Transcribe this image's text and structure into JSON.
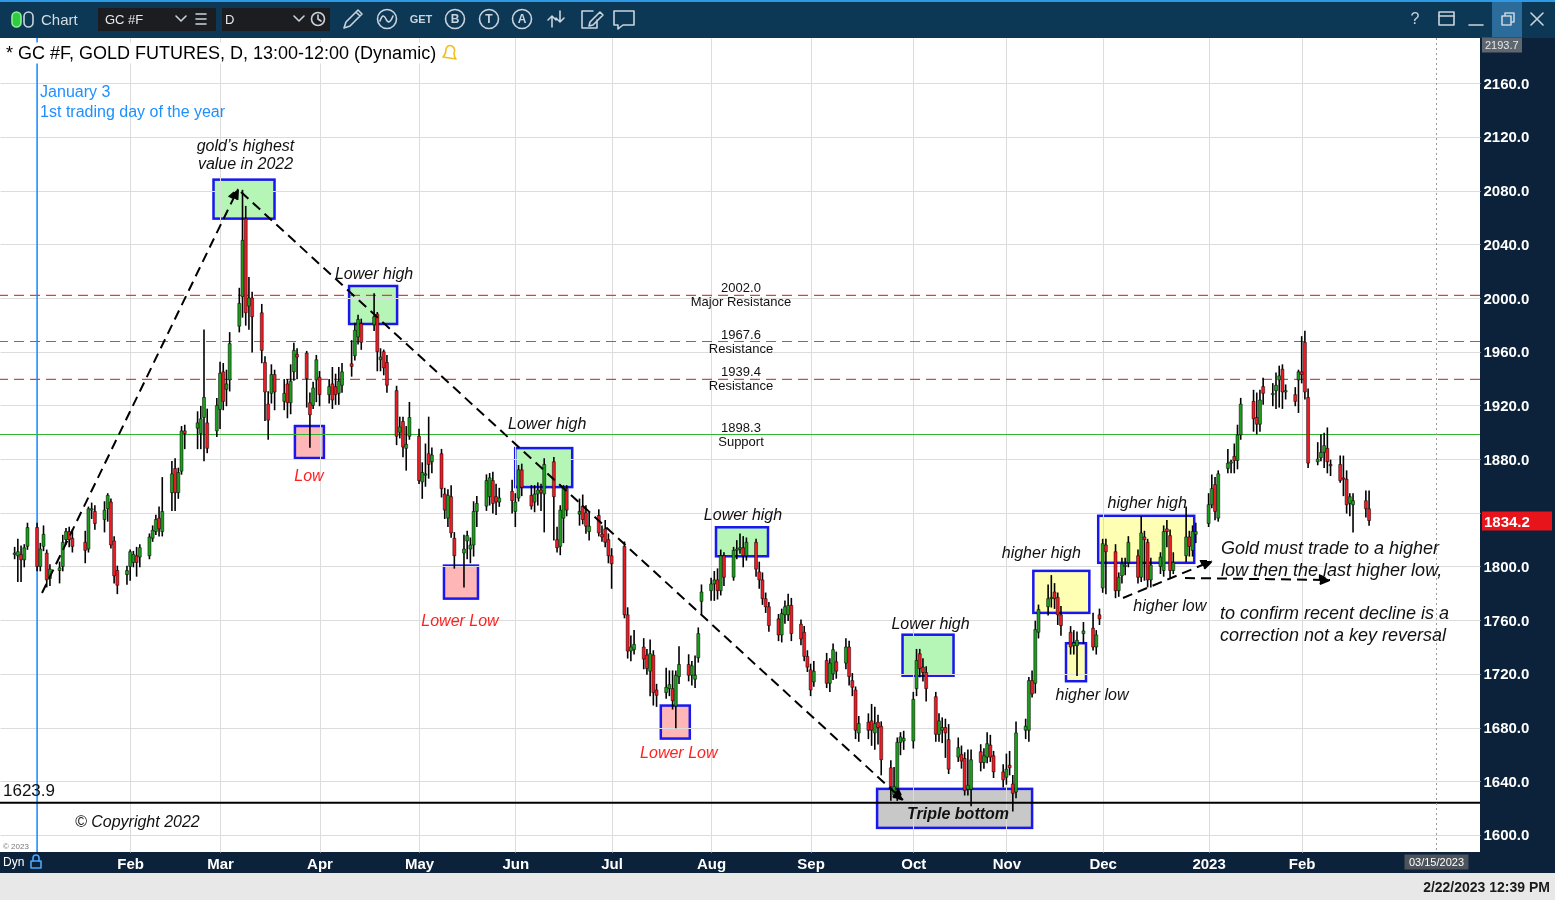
{
  "chart_data": {
    "type": "candlestick",
    "title": "* GC #F, GOLD FUTURES, D, 13:00-12:00 (Dynamic)",
    "x": [
      "2021-12-27",
      "2021-12-28",
      "2021-12-29",
      "2021-12-30",
      "2021-12-31",
      "2022-01-03",
      "2022-01-04",
      "2022-01-05",
      "2022-01-06",
      "2022-01-07",
      "2022-01-10",
      "2022-01-11",
      "2022-01-12",
      "2022-01-13",
      "2022-01-14",
      "2022-01-18",
      "2022-01-19",
      "2022-01-20",
      "2022-01-21",
      "2022-01-24",
      "2022-01-25",
      "2022-01-26",
      "2022-01-27",
      "2022-01-28",
      "2022-01-31",
      "2022-02-01",
      "2022-02-02",
      "2022-02-03",
      "2022-02-04",
      "2022-02-07",
      "2022-02-08",
      "2022-02-09",
      "2022-02-10",
      "2022-02-11",
      "2022-02-14",
      "2022-02-15",
      "2022-02-16",
      "2022-02-17",
      "2022-02-18",
      "2022-02-22",
      "2022-02-23",
      "2022-02-24",
      "2022-02-25",
      "2022-02-28",
      "2022-03-01",
      "2022-03-02",
      "2022-03-03",
      "2022-03-04",
      "2022-03-07",
      "2022-03-08",
      "2022-03-09",
      "2022-03-10",
      "2022-03-11",
      "2022-03-14",
      "2022-03-15",
      "2022-03-16",
      "2022-03-17",
      "2022-03-18",
      "2022-03-21",
      "2022-03-22",
      "2022-03-23",
      "2022-03-24",
      "2022-03-25",
      "2022-03-28",
      "2022-03-29",
      "2022-03-30",
      "2022-03-31",
      "2022-04-01",
      "2022-04-04",
      "2022-04-05",
      "2022-04-06",
      "2022-04-07",
      "2022-04-08",
      "2022-04-11",
      "2022-04-12",
      "2022-04-13",
      "2022-04-14",
      "2022-04-18",
      "2022-04-19",
      "2022-04-20",
      "2022-04-21",
      "2022-04-22",
      "2022-04-25",
      "2022-04-26",
      "2022-04-27",
      "2022-04-28",
      "2022-04-29",
      "2022-05-02",
      "2022-05-03",
      "2022-05-04",
      "2022-05-05",
      "2022-05-06",
      "2022-05-09",
      "2022-05-10",
      "2022-05-11",
      "2022-05-12",
      "2022-05-13",
      "2022-05-16",
      "2022-05-17",
      "2022-05-18",
      "2022-05-19",
      "2022-05-20",
      "2022-05-23",
      "2022-05-24",
      "2022-05-25",
      "2022-05-26",
      "2022-05-27",
      "2022-05-31",
      "2022-06-01",
      "2022-06-02",
      "2022-06-03",
      "2022-06-06",
      "2022-06-07",
      "2022-06-08",
      "2022-06-09",
      "2022-06-10",
      "2022-06-13",
      "2022-06-14",
      "2022-06-15",
      "2022-06-16",
      "2022-06-17",
      "2022-06-21",
      "2022-06-22",
      "2022-06-23",
      "2022-06-24",
      "2022-06-27",
      "2022-06-28",
      "2022-06-29",
      "2022-06-30",
      "2022-07-01",
      "2022-07-05",
      "2022-07-06",
      "2022-07-07",
      "2022-07-08",
      "2022-07-11",
      "2022-07-12",
      "2022-07-13",
      "2022-07-14",
      "2022-07-15",
      "2022-07-18",
      "2022-07-19",
      "2022-07-20",
      "2022-07-21",
      "2022-07-22",
      "2022-07-25",
      "2022-07-26",
      "2022-07-27",
      "2022-07-28",
      "2022-07-29",
      "2022-08-01",
      "2022-08-02",
      "2022-08-03",
      "2022-08-04",
      "2022-08-05",
      "2022-08-08",
      "2022-08-09",
      "2022-08-10",
      "2022-08-11",
      "2022-08-12",
      "2022-08-15",
      "2022-08-16",
      "2022-08-17",
      "2022-08-18",
      "2022-08-19",
      "2022-08-22",
      "2022-08-23",
      "2022-08-24",
      "2022-08-25",
      "2022-08-26",
      "2022-08-29",
      "2022-08-30",
      "2022-08-31",
      "2022-09-01",
      "2022-09-02",
      "2022-09-06",
      "2022-09-07",
      "2022-09-08",
      "2022-09-09",
      "2022-09-12",
      "2022-09-13",
      "2022-09-14",
      "2022-09-15",
      "2022-09-16",
      "2022-09-19",
      "2022-09-20",
      "2022-09-21",
      "2022-09-22",
      "2022-09-23",
      "2022-09-26",
      "2022-09-27",
      "2022-09-28",
      "2022-09-29",
      "2022-09-30",
      "2022-10-03",
      "2022-10-04",
      "2022-10-05",
      "2022-10-06",
      "2022-10-07",
      "2022-10-10",
      "2022-10-11",
      "2022-10-12",
      "2022-10-13",
      "2022-10-14",
      "2022-10-17",
      "2022-10-18",
      "2022-10-19",
      "2022-10-20",
      "2022-10-21",
      "2022-10-24",
      "2022-10-25",
      "2022-10-26",
      "2022-10-27",
      "2022-10-28",
      "2022-10-31",
      "2022-11-01",
      "2022-11-02",
      "2022-11-03",
      "2022-11-04",
      "2022-11-07",
      "2022-11-08",
      "2022-11-09",
      "2022-11-10",
      "2022-11-11",
      "2022-11-14",
      "2022-11-15",
      "2022-11-16",
      "2022-11-17",
      "2022-11-18",
      "2022-11-21",
      "2022-11-22",
      "2022-11-23",
      "2022-11-25",
      "2022-11-28",
      "2022-11-29",
      "2022-11-30",
      "2022-12-01",
      "2022-12-02",
      "2022-12-05",
      "2022-12-06",
      "2022-12-07",
      "2022-12-08",
      "2022-12-09",
      "2022-12-12",
      "2022-12-13",
      "2022-12-14",
      "2022-12-15",
      "2022-12-16",
      "2022-12-19",
      "2022-12-20",
      "2022-12-21",
      "2022-12-22",
      "2022-12-23",
      "2022-12-27",
      "2022-12-28",
      "2022-12-29",
      "2022-12-30",
      "2023-01-03",
      "2023-01-04",
      "2023-01-05",
      "2023-01-06",
      "2023-01-09",
      "2023-01-10",
      "2023-01-11",
      "2023-01-12",
      "2023-01-13",
      "2023-01-17",
      "2023-01-18",
      "2023-01-19",
      "2023-01-20",
      "2023-01-23",
      "2023-01-24",
      "2023-01-25",
      "2023-01-26",
      "2023-01-27",
      "2023-01-30",
      "2023-01-31",
      "2023-02-01",
      "2023-02-02",
      "2023-02-03",
      "2023-02-06",
      "2023-02-07",
      "2023-02-08",
      "2023-02-09",
      "2023-02-10",
      "2023-02-13",
      "2023-02-14",
      "2023-02-15",
      "2023-02-16",
      "2023-02-17",
      "2023-02-21",
      "2023-02-22"
    ],
    "ohlc": [
      [
        1809,
        1814,
        1806,
        1810
      ],
      [
        1808,
        1820,
        1789,
        1811
      ],
      [
        1809,
        1815,
        1789,
        1805
      ],
      [
        1805,
        1816,
        1800,
        1814
      ],
      [
        1815,
        1832,
        1813,
        1829
      ],
      [
        1829,
        1832,
        1797,
        1800
      ],
      [
        1800,
        1817,
        1797,
        1813
      ],
      [
        1815,
        1830,
        1812,
        1824
      ],
      [
        1810,
        1812,
        1785,
        1790
      ],
      [
        1791,
        1801,
        1786,
        1798
      ],
      [
        1797,
        1803,
        1788,
        1799
      ],
      [
        1800,
        1823,
        1797,
        1818
      ],
      [
        1820,
        1828,
        1817,
        1826
      ],
      [
        1826,
        1829,
        1815,
        1820
      ],
      [
        1821,
        1827,
        1811,
        1815
      ],
      [
        1818,
        1826,
        1803,
        1812
      ],
      [
        1813,
        1844,
        1811,
        1843
      ],
      [
        1842,
        1847,
        1836,
        1843
      ],
      [
        1841,
        1845,
        1828,
        1832
      ],
      [
        1835,
        1848,
        1826,
        1842
      ],
      [
        1843,
        1854,
        1834,
        1853
      ],
      [
        1848,
        1850,
        1814,
        1816
      ],
      [
        1819,
        1822,
        1788,
        1793
      ],
      [
        1797,
        1800,
        1780,
        1786
      ],
      [
        1794,
        1800,
        1787,
        1797
      ],
      [
        1800,
        1812,
        1790,
        1811
      ],
      [
        1803,
        1811,
        1800,
        1809
      ],
      [
        1808,
        1814,
        1793,
        1803
      ],
      [
        1807,
        1816,
        1800,
        1814
      ],
      [
        1808,
        1824,
        1806,
        1822
      ],
      [
        1821,
        1830,
        1819,
        1827
      ],
      [
        1826,
        1838,
        1824,
        1835
      ],
      [
        1836,
        1844,
        1823,
        1828
      ],
      [
        1826,
        1866,
        1823,
        1841
      ],
      [
        1855,
        1878,
        1842,
        1869
      ],
      [
        1873,
        1880,
        1842,
        1855
      ],
      [
        1855,
        1873,
        1851,
        1870
      ],
      [
        1871,
        1904,
        1869,
        1901
      ],
      [
        1901,
        1905,
        1888,
        1899
      ],
      [
        1903,
        1915,
        1888,
        1907
      ],
      [
        1899,
        1919,
        1888,
        1910
      ],
      [
        1911,
        1976,
        1879,
        1926
      ],
      [
        1907,
        1917,
        1885,
        1888
      ],
      [
        1901,
        1925,
        1897,
        1920
      ],
      [
        1917,
        1952,
        1903,
        1944
      ],
      [
        1945,
        1951,
        1917,
        1923
      ],
      [
        1932,
        1946,
        1920,
        1936
      ],
      [
        1939,
        1974,
        1931,
        1966
      ],
      [
        1979,
        2007,
        1975,
        1996
      ],
      [
        2001,
        2080,
        1986,
        2043
      ],
      [
        2059,
        2068,
        1980,
        1989
      ],
      [
        1994,
        2015,
        1977,
        2000
      ],
      [
        2000,
        2004,
        1960,
        1986
      ],
      [
        1989,
        1995,
        1952,
        1961
      ],
      [
        1952,
        1956,
        1909,
        1930
      ],
      [
        1921,
        1930,
        1895,
        1909
      ],
      [
        1929,
        1950,
        1922,
        1943
      ],
      [
        1943,
        1946,
        1917,
        1930
      ],
      [
        1923,
        1939,
        1917,
        1929
      ],
      [
        1936,
        1939,
        1911,
        1922
      ],
      [
        1922,
        1950,
        1914,
        1938
      ],
      [
        1945,
        1966,
        1939,
        1961
      ],
      [
        1958,
        1962,
        1940,
        1956
      ],
      [
        1959,
        1960,
        1919,
        1940
      ],
      [
        1922,
        1929,
        1889,
        1913
      ],
      [
        1920,
        1937,
        1918,
        1933
      ],
      [
        1939,
        1957,
        1923,
        1954
      ],
      [
        1941,
        1945,
        1920,
        1928
      ],
      [
        1928,
        1939,
        1922,
        1934
      ],
      [
        1936,
        1948,
        1918,
        1924
      ],
      [
        1934,
        1943,
        1921,
        1928
      ],
      [
        1929,
        1948,
        1921,
        1938
      ],
      [
        1935,
        1951,
        1930,
        1945
      ],
      [
        1951,
        1968,
        1942,
        1949
      ],
      [
        1957,
        1981,
        1954,
        1976
      ],
      [
        1971,
        1987,
        1966,
        1984
      ],
      [
        1981,
        1984,
        1962,
        1967
      ],
      [
        1980,
        2003,
        1976,
        1986
      ],
      [
        1988,
        1989,
        1946,
        1960
      ],
      [
        1954,
        1962,
        1946,
        1956
      ],
      [
        1960,
        1961,
        1943,
        1948
      ],
      [
        1952,
        1957,
        1930,
        1935
      ],
      [
        1931,
        1934,
        1891,
        1897
      ],
      [
        1900,
        1911,
        1896,
        1904
      ],
      [
        1908,
        1911,
        1882,
        1889
      ],
      [
        1888,
        1904,
        1872,
        1891
      ],
      [
        1897,
        1922,
        1895,
        1911
      ],
      [
        1897,
        1902,
        1862,
        1864
      ],
      [
        1863,
        1877,
        1851,
        1870
      ],
      [
        1868,
        1891,
        1860,
        1869
      ],
      [
        1884,
        1911,
        1866,
        1876
      ],
      [
        1878,
        1888,
        1870,
        1883
      ],
      [
        1884,
        1887,
        1852,
        1858
      ],
      [
        1854,
        1858,
        1836,
        1842
      ],
      [
        1836,
        1857,
        1830,
        1853
      ],
      [
        1852,
        1860,
        1822,
        1825
      ],
      [
        1821,
        1825,
        1799,
        1808
      ],
      [
        1810,
        1823,
        1785,
        1813
      ],
      [
        1819,
        1826,
        1806,
        1823
      ],
      [
        1813,
        1821,
        1803,
        1816
      ],
      [
        1816,
        1848,
        1808,
        1841
      ],
      [
        1841,
        1852,
        1830,
        1847
      ],
      [
        1845,
        1868,
        1842,
        1864
      ],
      [
        1852,
        1869,
        1846,
        1866
      ],
      [
        1864,
        1870,
        1840,
        1847
      ],
      [
        1852,
        1861,
        1839,
        1848
      ],
      [
        1848,
        1858,
        1845,
        1851
      ],
      [
        1856,
        1864,
        1840,
        1849
      ],
      [
        1841,
        1854,
        1830,
        1848
      ],
      [
        1851,
        1875,
        1849,
        1872
      ],
      [
        1872,
        1876,
        1853,
        1859
      ],
      [
        1853,
        1860,
        1843,
        1845
      ],
      [
        1848,
        1860,
        1841,
        1854
      ],
      [
        1854,
        1862,
        1846,
        1857
      ],
      [
        1857,
        1861,
        1842,
        1855
      ],
      [
        1854,
        1880,
        1826,
        1876
      ],
      [
        1878,
        1881,
        1820,
        1852
      ],
      [
        1820,
        1829,
        1811,
        1814
      ],
      [
        1815,
        1845,
        1809,
        1842
      ],
      [
        1836,
        1860,
        1818,
        1859
      ],
      [
        1858,
        1860,
        1838,
        1842
      ],
      [
        1839,
        1850,
        1831,
        1841
      ],
      [
        1845,
        1853,
        1832,
        1835
      ],
      [
        1840,
        1845,
        1825,
        1830
      ],
      [
        1826,
        1840,
        1820,
        1830
      ],
      [
        1838,
        1842,
        1823,
        1825
      ],
      [
        1824,
        1830,
        1819,
        1822
      ],
      [
        1828,
        1834,
        1815,
        1818
      ],
      [
        1820,
        1824,
        1803,
        1808
      ],
      [
        1808,
        1813,
        1784,
        1802
      ],
      [
        1815,
        1818,
        1762,
        1764
      ],
      [
        1764,
        1769,
        1732,
        1737
      ],
      [
        1737,
        1748,
        1730,
        1740
      ],
      [
        1738,
        1752,
        1735,
        1742
      ],
      [
        1740,
        1746,
        1724,
        1731
      ],
      [
        1734,
        1738,
        1720,
        1724
      ],
      [
        1722,
        1745,
        1704,
        1735
      ],
      [
        1734,
        1737,
        1697,
        1706
      ],
      [
        1708,
        1712,
        1696,
        1704
      ],
      [
        1706,
        1724,
        1702,
        1710
      ],
      [
        1709,
        1722,
        1704,
        1712
      ],
      [
        1709,
        1722,
        1694,
        1700
      ],
      [
        1696,
        1722,
        1680,
        1719
      ],
      [
        1718,
        1740,
        1713,
        1727
      ],
      [
        1727,
        1734,
        1715,
        1719
      ],
      [
        1719,
        1729,
        1712,
        1726
      ],
      [
        1716,
        1733,
        1710,
        1719
      ],
      [
        1732,
        1754,
        1729,
        1750
      ],
      [
        1774,
        1786,
        1765,
        1781
      ],
      [
        1782,
        1791,
        1775,
        1787
      ],
      [
        1787,
        1796,
        1775,
        1790
      ],
      [
        1790,
        1798,
        1776,
        1782
      ],
      [
        1782,
        1812,
        1779,
        1808
      ],
      [
        1808,
        1810,
        1786,
        1792
      ],
      [
        1792,
        1814,
        1790,
        1812
      ],
      [
        1812,
        1819,
        1806,
        1813
      ],
      [
        1813,
        1824,
        1810,
        1814
      ],
      [
        1814,
        1822,
        1800,
        1808
      ],
      [
        1808,
        1821,
        1805,
        1818
      ],
      [
        1818,
        1820,
        1793,
        1798
      ],
      [
        1796,
        1803,
        1784,
        1790
      ],
      [
        1790,
        1795,
        1772,
        1776
      ],
      [
        1776,
        1780,
        1766,
        1770
      ],
      [
        1770,
        1773,
        1752,
        1756
      ],
      [
        1761,
        1764,
        1745,
        1749
      ],
      [
        1749,
        1768,
        1744,
        1765
      ],
      [
        1764,
        1774,
        1758,
        1770
      ],
      [
        1764,
        1779,
        1760,
        1771
      ],
      [
        1771,
        1776,
        1745,
        1750
      ],
      [
        1757,
        1760,
        1742,
        1746
      ],
      [
        1751,
        1755,
        1730,
        1733
      ],
      [
        1733,
        1737,
        1722,
        1725
      ],
      [
        1723,
        1727,
        1704,
        1708
      ],
      [
        1714,
        1729,
        1711,
        1722
      ],
      [
        1730,
        1735,
        1710,
        1713
      ],
      [
        1713,
        1731,
        1707,
        1728
      ],
      [
        1720,
        1742,
        1716,
        1738
      ],
      [
        1729,
        1736,
        1717,
        1722
      ],
      [
        1728,
        1746,
        1724,
        1740
      ],
      [
        1740,
        1744,
        1712,
        1718
      ],
      [
        1715,
        1720,
        1704,
        1710
      ],
      [
        1708,
        1710,
        1672,
        1678
      ],
      [
        1676,
        1688,
        1670,
        1683
      ],
      [
        1684,
        1690,
        1672,
        1678
      ],
      [
        1685,
        1697,
        1667,
        1678
      ],
      [
        1676,
        1695,
        1664,
        1683
      ],
      [
        1684,
        1689,
        1668,
        1680
      ],
      [
        1681,
        1684,
        1645,
        1656
      ],
      [
        1650,
        1655,
        1626,
        1636
      ],
      [
        1630,
        1650,
        1628,
        1636
      ],
      [
        1635,
        1672,
        1626,
        1669
      ],
      [
        1669,
        1676,
        1660,
        1673
      ],
      [
        1670,
        1677,
        1664,
        1672
      ],
      [
        1670,
        1706,
        1665,
        1701
      ],
      [
        1709,
        1738,
        1704,
        1730
      ],
      [
        1735,
        1738,
        1718,
        1724
      ],
      [
        1725,
        1731,
        1715,
        1721
      ],
      [
        1721,
        1725,
        1700,
        1709
      ],
      [
        1703,
        1706,
        1670,
        1675
      ],
      [
        1675,
        1690,
        1670,
        1685
      ],
      [
        1678,
        1687,
        1669,
        1680
      ],
      [
        1680,
        1686,
        1658,
        1676
      ],
      [
        1671,
        1682,
        1646,
        1649
      ],
      [
        1658,
        1672,
        1655,
        1665
      ],
      [
        1660,
        1666,
        1650,
        1655
      ],
      [
        1657,
        1661,
        1630,
        1633
      ],
      [
        1634,
        1663,
        1630,
        1637
      ],
      [
        1634,
        1663,
        1622,
        1656
      ],
      [
        1662,
        1667,
        1648,
        1654
      ],
      [
        1654,
        1664,
        1650,
        1659
      ],
      [
        1658,
        1676,
        1654,
        1668
      ],
      [
        1667,
        1674,
        1655,
        1658
      ],
      [
        1659,
        1662,
        1643,
        1647
      ],
      [
        1647,
        1652,
        1636,
        1641
      ],
      [
        1643,
        1660,
        1638,
        1649
      ],
      [
        1652,
        1662,
        1645,
        1650
      ],
      [
        1638,
        1644,
        1618,
        1631
      ],
      [
        1632,
        1684,
        1628,
        1676
      ],
      [
        1678,
        1686,
        1672,
        1681
      ],
      [
        1678,
        1717,
        1670,
        1715
      ],
      [
        1715,
        1722,
        1703,
        1705
      ],
      [
        1713,
        1759,
        1706,
        1753
      ],
      [
        1751,
        1771,
        1747,
        1768
      ],
      [
        1770,
        1786,
        1764,
        1776
      ],
      [
        1776,
        1793,
        1770,
        1777
      ],
      [
        1781,
        1787,
        1769,
        1776
      ],
      [
        1777,
        1780,
        1757,
        1764
      ],
      [
        1764,
        1770,
        1749,
        1756
      ],
      [
        1751,
        1755,
        1735,
        1740
      ],
      [
        1741,
        1752,
        1735,
        1743
      ],
      [
        1741,
        1751,
        1719,
        1745
      ],
      [
        1750,
        1758,
        1743,
        1752
      ],
      [
        1754,
        1765,
        1738,
        1740
      ],
      [
        1740,
        1752,
        1735,
        1749
      ],
      [
        1764,
        1768,
        1757,
        1761
      ],
      [
        1784,
        1820,
        1781,
        1817
      ],
      [
        1816,
        1820,
        1780,
        1811
      ],
      [
        1811,
        1816,
        1777,
        1782
      ],
      [
        1782,
        1795,
        1778,
        1792
      ],
      [
        1793,
        1806,
        1788,
        1802
      ],
      [
        1800,
        1806,
        1794,
        1801
      ],
      [
        1803,
        1822,
        1800,
        1818
      ],
      [
        1808,
        1812,
        1788,
        1792
      ],
      [
        1792,
        1837,
        1789,
        1825
      ],
      [
        1822,
        1826,
        1790,
        1820
      ],
      [
        1818,
        1820,
        1785,
        1790
      ],
      [
        1790,
        1806,
        1785,
        1801
      ],
      [
        1800,
        1810,
        1795,
        1807
      ],
      [
        1797,
        1830,
        1793,
        1826
      ],
      [
        1828,
        1834,
        1815,
        1826
      ],
      [
        1823,
        1827,
        1792,
        1797
      ],
      [
        1797,
        1810,
        1795,
        1803
      ],
      [
        1808,
        1844,
        1804,
        1822
      ],
      [
        1822,
        1826,
        1808,
        1815
      ],
      [
        1812,
        1830,
        1808,
        1826
      ],
      [
        1824,
        1832,
        1818,
        1826
      ],
      [
        1832,
        1854,
        1830,
        1846
      ],
      [
        1846,
        1868,
        1844,
        1858
      ],
      [
        1861,
        1866,
        1835,
        1841
      ],
      [
        1836,
        1871,
        1834,
        1869
      ],
      [
        1873,
        1887,
        1870,
        1877
      ],
      [
        1877,
        1879,
        1870,
        1878
      ],
      [
        1882,
        1891,
        1870,
        1879
      ],
      [
        1879,
        1905,
        1873,
        1898
      ],
      [
        1898,
        1925,
        1895,
        1921
      ],
      [
        1923,
        1931,
        1901,
        1910
      ],
      [
        1911,
        1929,
        1899,
        1906
      ],
      [
        1906,
        1931,
        1901,
        1924
      ],
      [
        1934,
        1940,
        1921,
        1929
      ],
      [
        1928,
        1936,
        1920,
        1929
      ],
      [
        1931,
        1944,
        1918,
        1935
      ],
      [
        1939,
        1949,
        1919,
        1942
      ],
      [
        1947,
        1950,
        1918,
        1930
      ],
      [
        1930,
        1935,
        1925,
        1931
      ],
      [
        1928,
        1933,
        1920,
        1923
      ],
      [
        1939,
        1946,
        1915,
        1945
      ],
      [
        1945,
        1971,
        1937,
        1943
      ],
      [
        1967,
        1975,
        1925,
        1930
      ],
      [
        1926,
        1932,
        1874,
        1877
      ],
      [
        1878,
        1892,
        1876,
        1880
      ],
      [
        1881,
        1898,
        1879,
        1885
      ],
      [
        1885,
        1899,
        1874,
        1890
      ],
      [
        1888,
        1903,
        1870,
        1878
      ],
      [
        1876,
        1879,
        1868,
        1875
      ],
      [
        1876,
        1882,
        1863,
        1864
      ],
      [
        1866,
        1882,
        1853,
        1865
      ],
      [
        1865,
        1871,
        1840,
        1846
      ],
      [
        1847,
        1854,
        1838,
        1852
      ],
      [
        1846,
        1854,
        1826,
        1849
      ],
      [
        1849,
        1856,
        1837,
        1843
      ],
      [
        1843,
        1856,
        1831,
        1834.2
      ]
    ],
    "xlim": [
      "2021-12-24",
      "2023-03-27"
    ],
    "xticks": [
      {
        "value": "2022-02-01",
        "label": "Feb"
      },
      {
        "value": "2022-03-01",
        "label": "Mar"
      },
      {
        "value": "2022-04-01",
        "label": "Apr"
      },
      {
        "value": "2022-05-02",
        "label": "May"
      },
      {
        "value": "2022-06-01",
        "label": "Jun"
      },
      {
        "value": "2022-07-01",
        "label": "Jul"
      },
      {
        "value": "2022-08-01",
        "label": "Aug"
      },
      {
        "value": "2022-09-01",
        "label": "Sep"
      },
      {
        "value": "2022-10-03",
        "label": "Oct"
      },
      {
        "value": "2022-11-01",
        "label": "Nov"
      },
      {
        "value": "2022-12-01",
        "label": "Dec"
      },
      {
        "value": "2023-01-03",
        "label": "2023"
      },
      {
        "value": "2023-02-01",
        "label": "Feb"
      }
    ],
    "ylim": [
      1587.3,
      2193.7
    ],
    "yticks": [
      {
        "value": 1600,
        "label": "1600.0"
      },
      {
        "value": 1640,
        "label": "1640.0"
      },
      {
        "value": 1680,
        "label": "1680.0"
      },
      {
        "value": 1720,
        "label": "1720.0"
      },
      {
        "value": 1760,
        "label": "1760.0"
      },
      {
        "value": 1800,
        "label": "1800.0"
      },
      {
        "value": 1840,
        "label": null
      },
      {
        "value": 1880,
        "label": "1880.0"
      },
      {
        "value": 1920,
        "label": "1920.0"
      },
      {
        "value": 1960,
        "label": "1960.0"
      },
      {
        "value": 2000,
        "label": "2000.0"
      },
      {
        "value": 2040,
        "label": "2040.0"
      },
      {
        "value": 2080,
        "label": "2080.0"
      },
      {
        "value": 2120,
        "label": "2120.0"
      },
      {
        "value": 2160,
        "label": "2160.0"
      }
    ],
    "grid": true,
    "ref_lines": [
      {
        "axis": "x",
        "value": "2022-01-03",
        "label": "January 3\n1st trading day of the year",
        "color": "#1e8fff"
      },
      {
        "axis": "y",
        "value": 2002.0,
        "label": "2002.0\nMajor Resistance",
        "color": "#e0403c",
        "line_style": "dashed"
      },
      {
        "axis": "y",
        "value": 1967.6,
        "label": "1967.6\nResistance",
        "color": "#c0504c",
        "line_style": "dashed"
      },
      {
        "axis": "y",
        "value": 1939.4,
        "label": "1939.4\nResistance",
        "color": "#c0504c",
        "line_style": "dashed"
      },
      {
        "axis": "y",
        "value": 1898.3,
        "label": "1898.3\nSupport",
        "color": "#2fb52f"
      },
      {
        "axis": "y",
        "value": 1623.9,
        "label": "1623.9",
        "color": "#000000"
      },
      {
        "axis": "x",
        "value": "2023-03-15",
        "label": "03/15/2023",
        "color": "#9a9a9a",
        "line_style": "dotted"
      }
    ],
    "annotations": [
      {
        "text": "gold’s highest\nvalue in 2022",
        "x": "2022-03-08",
        "y": 2080
      },
      {
        "text": "Lower high",
        "x": "2022-04-18",
        "y": 2003
      },
      {
        "text": "Low",
        "x": "2022-03-29",
        "y": 1889
      },
      {
        "text": "Lower Low",
        "x": "2022-05-16",
        "y": 1785
      },
      {
        "text": "Lower high",
        "x": "2022-06-10",
        "y": 1880
      },
      {
        "text": "Lower Low",
        "x": "2022-07-21",
        "y": 1680
      },
      {
        "text": "Lower high",
        "x": "2022-08-10",
        "y": 1824
      },
      {
        "text": "Lower high",
        "x": "2022-10-04",
        "y": 1738
      },
      {
        "text": "Triple bottom",
        "x": "2022-10-21",
        "y": 1623.9
      },
      {
        "text": "higher high",
        "x": "2022-11-15",
        "y": 1793
      },
      {
        "text": "higher low",
        "x": "2022-11-23",
        "y": 1719
      },
      {
        "text": "higher high",
        "x": "2022-12-13",
        "y": 1837
      },
      {
        "text": "higher low",
        "x": "2022-12-16",
        "y": 1785
      },
      "Gold must trade to a higher\nlow then the last higher low,",
      "to confirm recent decline is a\ncorrection not a key reversal",
      "© Copyright 2022",
      "© 2023",
      "1834.2",
      "2193.7",
      "Dyn",
      "2/22/2023 12:39 PM",
      "Chart",
      "GC #F",
      "D",
      "GET",
      "B",
      "T",
      "A",
      "?"
    ]
  }
}
